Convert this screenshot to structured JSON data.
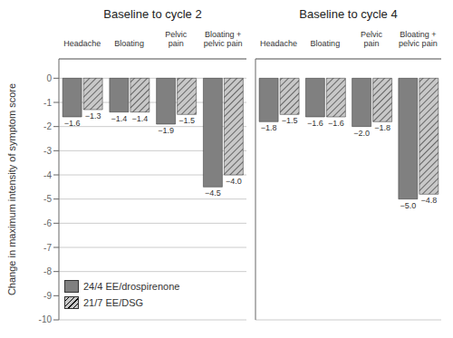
{
  "chart_data": [
    {
      "type": "bar",
      "title": "Baseline to cycle 2",
      "categories": [
        "Headache",
        "Bloating",
        "Pelvic\npain",
        "Bloating +\npelvic pain"
      ],
      "ylabel": "Change in maximum intensity of symptom score",
      "series": [
        {
          "name": "24/4 EE/drospirenone",
          "color": "#808080",
          "values": [
            -1.6,
            -1.4,
            -1.9,
            -4.5
          ],
          "value_labels": [
            "−1.6",
            "−1.4",
            "−1.9",
            "−4.5"
          ]
        },
        {
          "name": "21/7 EE/DSG",
          "color": "#c8c8c8",
          "values": [
            -1.3,
            -1.4,
            -1.5,
            -4.0
          ],
          "value_labels": [
            "−1.3",
            "−1.4",
            "−1.5",
            "−4.0"
          ]
        }
      ],
      "ylim": [
        -10,
        0.8
      ],
      "yticks": [
        0,
        -1,
        -2,
        -3,
        -4,
        -5,
        -6,
        -7,
        -8,
        -9,
        -10
      ],
      "grid": true,
      "legend": "lower left",
      "data_labels": true
    },
    {
      "type": "bar",
      "title": "Baseline to cycle 4",
      "categories": [
        "Headache",
        "Bloating",
        "Pelvic\npain",
        "Bloating +\npelvic pain"
      ],
      "series": [
        {
          "name": "24/4 EE/drospirenone",
          "color": "#808080",
          "values": [
            -1.8,
            -1.6,
            -2.0,
            -5.0
          ],
          "value_labels": [
            "−1.8",
            "−1.6",
            "−2.0",
            "−5.0"
          ]
        },
        {
          "name": "21/7 EE/DSG",
          "color": "#c8c8c8",
          "values": [
            -1.5,
            -1.6,
            -1.8,
            -4.8
          ],
          "value_labels": [
            "−1.5",
            "−1.6",
            "−1.8",
            "−4.8"
          ]
        }
      ],
      "ylim": [
        -10,
        0.8
      ],
      "yticks": [
        0,
        -1,
        -2,
        -3,
        -4,
        -5,
        -6,
        -7,
        -8,
        -9,
        -10
      ],
      "grid": true,
      "tick_labels": "x",
      "data_labels": true
    }
  ]
}
